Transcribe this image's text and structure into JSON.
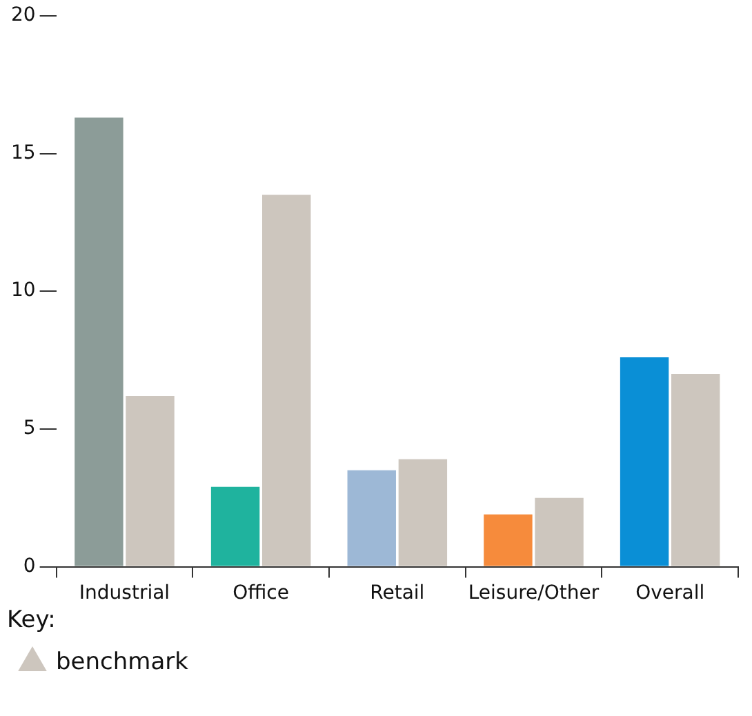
{
  "chart_data": {
    "type": "bar",
    "categories": [
      "Industrial",
      "Office",
      "Retail",
      "Leisure/Other",
      "Overall"
    ],
    "series": [
      {
        "colors": [
          "#8c9c98",
          "#1fb39e",
          "#9db8d6",
          "#f68b3c",
          "#0a8fd6"
        ],
        "values": [
          16.3,
          2.9,
          3.5,
          1.9,
          7.6
        ]
      },
      {
        "name": "benchmark",
        "color": "#cdc6be",
        "values": [
          6.2,
          13.5,
          3.9,
          2.5,
          7.0
        ]
      }
    ],
    "ylim": [
      0,
      20
    ],
    "yticks": [
      0,
      5,
      10,
      15,
      20
    ],
    "grid": false,
    "legend": "bottom left",
    "legend_title": "Key:"
  }
}
